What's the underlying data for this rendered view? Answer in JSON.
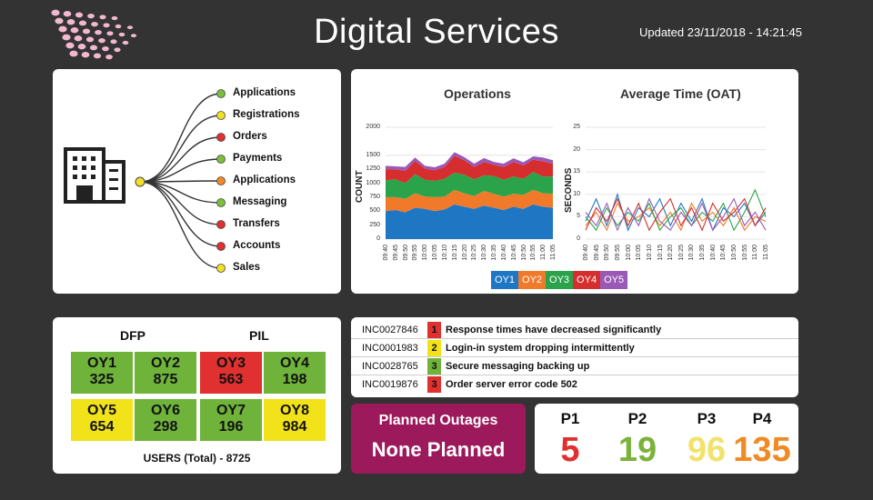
{
  "header": {
    "title": "Digital Services",
    "updated": "Updated 23/11/2018 - 14:21:45"
  },
  "services": {
    "items": [
      {
        "label": "Applications",
        "status": "#7bbf3a"
      },
      {
        "label": "Registrations",
        "status": "#f2e026"
      },
      {
        "label": "Orders",
        "status": "#e03030"
      },
      {
        "label": "Payments",
        "status": "#7bbf3a"
      },
      {
        "label": "Applications",
        "status": "#f08a24"
      },
      {
        "label": "Messaging",
        "status": "#7bbf3a"
      },
      {
        "label": "Transfers",
        "status": "#e03030"
      },
      {
        "label": "Accounts",
        "status": "#e03030"
      },
      {
        "label": "Sales",
        "status": "#f2e026"
      }
    ],
    "hub_color": "#f2e026"
  },
  "chart_data": [
    {
      "type": "area",
      "title": "Operations",
      "xlabel": "",
      "ylabel": "COUNT",
      "ylim": [
        0,
        2000
      ],
      "yticks": [
        0,
        250,
        500,
        750,
        1000,
        1250,
        1500,
        2000
      ],
      "x": [
        "09:40",
        "09:45",
        "09:50",
        "09:55",
        "10:00",
        "10:05",
        "10:10",
        "10:15",
        "10:20",
        "10:25",
        "10:30",
        "10:35",
        "10:40",
        "10:45",
        "10:50",
        "10:55",
        "11:00",
        "11:05"
      ],
      "stacked": true,
      "series": [
        {
          "name": "OY1",
          "color": "#1f77c4",
          "values": [
            500,
            520,
            480,
            560,
            540,
            500,
            530,
            620,
            580,
            540,
            600,
            560,
            520,
            580,
            540,
            620,
            580,
            560
          ]
        },
        {
          "name": "OY2",
          "color": "#f07a2a",
          "values": [
            250,
            230,
            240,
            260,
            220,
            250,
            230,
            260,
            240,
            230,
            260,
            250,
            240,
            230,
            250,
            260,
            240,
            250
          ]
        },
        {
          "name": "OY3",
          "color": "#2ba34a",
          "values": [
            300,
            320,
            280,
            340,
            300,
            290,
            320,
            310,
            330,
            300,
            280,
            320,
            300,
            310,
            290,
            320,
            300,
            310
          ]
        },
        {
          "name": "OY4",
          "color": "#d62e2e",
          "values": [
            200,
            180,
            220,
            240,
            200,
            190,
            210,
            300,
            260,
            220,
            240,
            200,
            230,
            260,
            240,
            220,
            270,
            230
          ]
        },
        {
          "name": "OY5",
          "color": "#9b59b6",
          "values": [
            60,
            50,
            70,
            60,
            50,
            55,
            60,
            65,
            55,
            60,
            70,
            50,
            60,
            65,
            55,
            60,
            70,
            60
          ]
        }
      ]
    },
    {
      "type": "line",
      "title": "Average Time (OAT)",
      "xlabel": "",
      "ylabel": "SECONDS",
      "ylim": [
        0,
        25
      ],
      "yticks": [
        0,
        5,
        10,
        15,
        20,
        25
      ],
      "x": [
        "09:40",
        "09:45",
        "09:50",
        "09:55",
        "10:00",
        "10:05",
        "10:10",
        "10:15",
        "10:20",
        "10:25",
        "10:30",
        "10:35",
        "10:40",
        "10:45",
        "10:50",
        "10:55",
        "11:00",
        "11:05"
      ],
      "series": [
        {
          "name": "OY1",
          "color": "#1f77c4",
          "values": [
            4,
            9,
            3,
            10,
            2,
            7,
            5,
            9,
            3,
            8,
            4,
            9,
            2,
            7,
            5,
            8,
            3,
            6
          ]
        },
        {
          "name": "OY2",
          "color": "#f07a2a",
          "values": [
            3,
            6,
            2,
            8,
            4,
            5,
            7,
            3,
            6,
            2,
            8,
            4,
            6,
            3,
            7,
            2,
            5,
            4
          ]
        },
        {
          "name": "OY3",
          "color": "#2ba34a",
          "values": [
            5,
            2,
            7,
            3,
            6,
            4,
            8,
            2,
            5,
            7,
            3,
            6,
            4,
            8,
            2,
            6,
            11,
            5
          ]
        },
        {
          "name": "OY4",
          "color": "#d62e2e",
          "values": [
            2,
            7,
            4,
            9,
            3,
            8,
            2,
            6,
            9,
            3,
            7,
            2,
            8,
            4,
            6,
            9,
            3,
            7
          ]
        },
        {
          "name": "OY5",
          "color": "#9b59b6",
          "values": [
            6,
            3,
            8,
            2,
            7,
            3,
            9,
            4,
            2,
            6,
            3,
            8,
            2,
            5,
            9,
            3,
            6,
            2
          ]
        }
      ]
    }
  ],
  "legend": [
    {
      "label": "OY1",
      "color": "#1f77c4"
    },
    {
      "label": "OY2",
      "color": "#f07a2a"
    },
    {
      "label": "OY3",
      "color": "#2ba34a"
    },
    {
      "label": "OY4",
      "color": "#d62e2e"
    },
    {
      "label": "OY5",
      "color": "#9b59b6"
    }
  ],
  "users": {
    "groups": [
      "DFP",
      "PIL"
    ],
    "tiles": [
      {
        "name": "OY1",
        "value": "325",
        "color": "#6fb33a"
      },
      {
        "name": "OY2",
        "value": "875",
        "color": "#6fb33a"
      },
      {
        "name": "OY3",
        "value": "563",
        "color": "#e03030"
      },
      {
        "name": "OY4",
        "value": "198",
        "color": "#6fb33a"
      },
      {
        "name": "OY5",
        "value": "654",
        "color": "#f2e21a"
      },
      {
        "name": "OY6",
        "value": "298",
        "color": "#6fb33a"
      },
      {
        "name": "OY7",
        "value": "196",
        "color": "#6fb33a"
      },
      {
        "name": "OY8",
        "value": "984",
        "color": "#f2e21a"
      }
    ],
    "total": "USERS (Total) - 8725"
  },
  "incidents": [
    {
      "id": "INC0027846",
      "priority": "1",
      "color": "#e03030",
      "desc": "Response times have decreased significantly"
    },
    {
      "id": "INC0001983",
      "priority": "2",
      "color": "#f2e21a",
      "desc": "Login-in system dropping intermittently"
    },
    {
      "id": "INC0028765",
      "priority": "3",
      "color": "#6fb33a",
      "desc": "Secure messaging backing up"
    },
    {
      "id": "INC0019876",
      "priority": "3",
      "color": "#e03030",
      "desc": "Order server error code 502"
    }
  ],
  "outages": {
    "title": "Planned Outages",
    "value": "None Planned",
    "color": "#9c1a5b"
  },
  "priorities": [
    {
      "label": "P1",
      "value": "5",
      "color": "#e03030"
    },
    {
      "label": "P2",
      "value": "19",
      "color": "#7bb33a"
    },
    {
      "label": "P3",
      "value": "96",
      "color": "#f2e26a"
    },
    {
      "label": "P4",
      "value": "135",
      "color": "#f08a24"
    }
  ]
}
